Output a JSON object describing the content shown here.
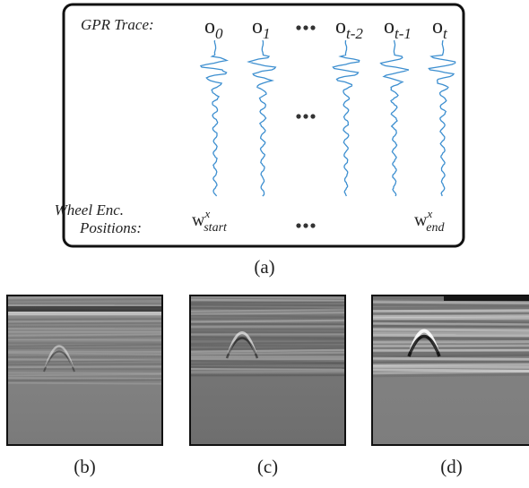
{
  "panel_a": {
    "trace_label": "GPR Trace:",
    "observations": [
      {
        "base": "o",
        "sub": "0"
      },
      {
        "base": "o",
        "sub": "1"
      },
      {
        "base": "o",
        "sub": "t-2"
      },
      {
        "base": "o",
        "sub": "t-1"
      },
      {
        "base": "o",
        "sub": "t"
      }
    ],
    "position_label": [
      "Wheel Enc.",
      "Positions:"
    ],
    "positions": [
      {
        "base": "w",
        "sup": "x",
        "sub": "start"
      },
      {
        "base": "w",
        "sup": "x",
        "sub": "end"
      }
    ],
    "caption": "(a)"
  },
  "panels": [
    {
      "caption": "(b)"
    },
    {
      "caption": "(c)"
    },
    {
      "caption": "(d)"
    }
  ]
}
